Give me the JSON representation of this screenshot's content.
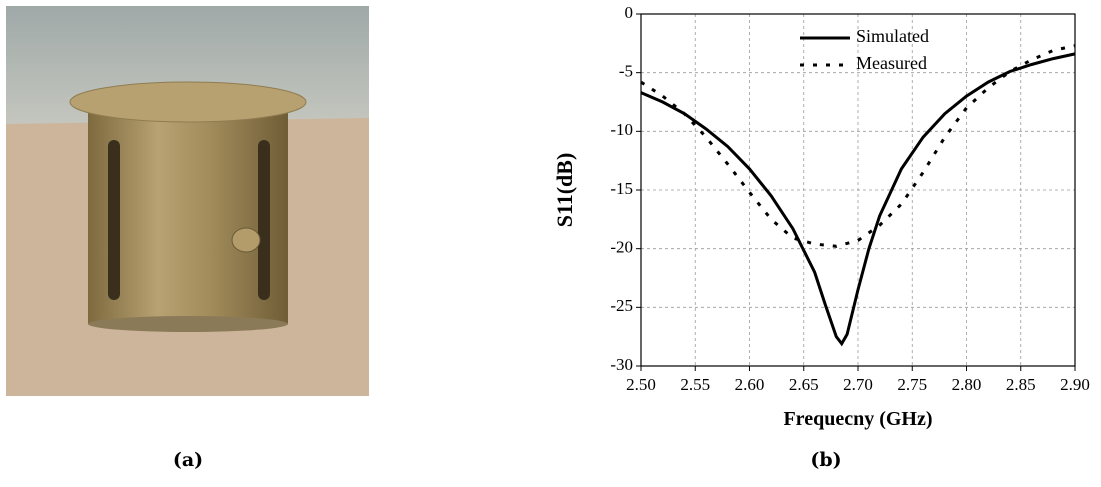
{
  "captions": [
    "(a)",
    "(b)"
  ],
  "chart_data": {
    "type": "line",
    "xlabel": "Frequecny (GHz)",
    "ylabel": "S11(dB)",
    "xlim": [
      2.5,
      2.9
    ],
    "ylim": [
      -30,
      0
    ],
    "xticks": [
      {
        "value": 2.5,
        "label": "2.50"
      },
      {
        "value": 2.55,
        "label": "2.55"
      },
      {
        "value": 2.6,
        "label": "2.60"
      },
      {
        "value": 2.65,
        "label": "2.65"
      },
      {
        "value": 2.7,
        "label": "2.70"
      },
      {
        "value": 2.75,
        "label": "2.75"
      },
      {
        "value": 2.8,
        "label": "2.80"
      },
      {
        "value": 2.85,
        "label": "2.85"
      },
      {
        "value": 2.9,
        "label": "2.90"
      }
    ],
    "yticks": [
      0,
      -5,
      -10,
      -15,
      -20,
      -25,
      -30
    ],
    "grid": true,
    "legend": "top",
    "series": [
      {
        "name": "Simulated",
        "color": "#000000",
        "dash": "solid",
        "x": [
          2.5,
          2.52,
          2.54,
          2.56,
          2.58,
          2.6,
          2.62,
          2.64,
          2.66,
          2.67,
          2.68,
          2.685,
          2.69,
          2.7,
          2.71,
          2.72,
          2.74,
          2.76,
          2.78,
          2.8,
          2.82,
          2.84,
          2.86,
          2.88,
          2.9
        ],
        "values": [
          -6.7,
          -7.5,
          -8.5,
          -9.8,
          -11.3,
          -13.2,
          -15.5,
          -18.3,
          -22,
          -24.8,
          -27.5,
          -28.1,
          -27.3,
          -23.5,
          -20,
          -17.2,
          -13.2,
          -10.5,
          -8.5,
          -7,
          -5.8,
          -4.9,
          -4.3,
          -3.8,
          -3.4
        ]
      },
      {
        "name": "Measured",
        "color": "#000000",
        "dash": "dotted",
        "x": [
          2.5,
          2.52,
          2.54,
          2.56,
          2.58,
          2.6,
          2.62,
          2.64,
          2.66,
          2.68,
          2.7,
          2.72,
          2.74,
          2.76,
          2.78,
          2.8,
          2.82,
          2.84,
          2.86,
          2.88,
          2.9
        ],
        "values": [
          -5.8,
          -7,
          -8.5,
          -10.5,
          -12.8,
          -15.2,
          -17.5,
          -19.1,
          -19.6,
          -19.8,
          -19.3,
          -18,
          -16.2,
          -13.5,
          -10.5,
          -8,
          -6.3,
          -4.9,
          -3.9,
          -3.1,
          -2.7
        ]
      }
    ]
  }
}
